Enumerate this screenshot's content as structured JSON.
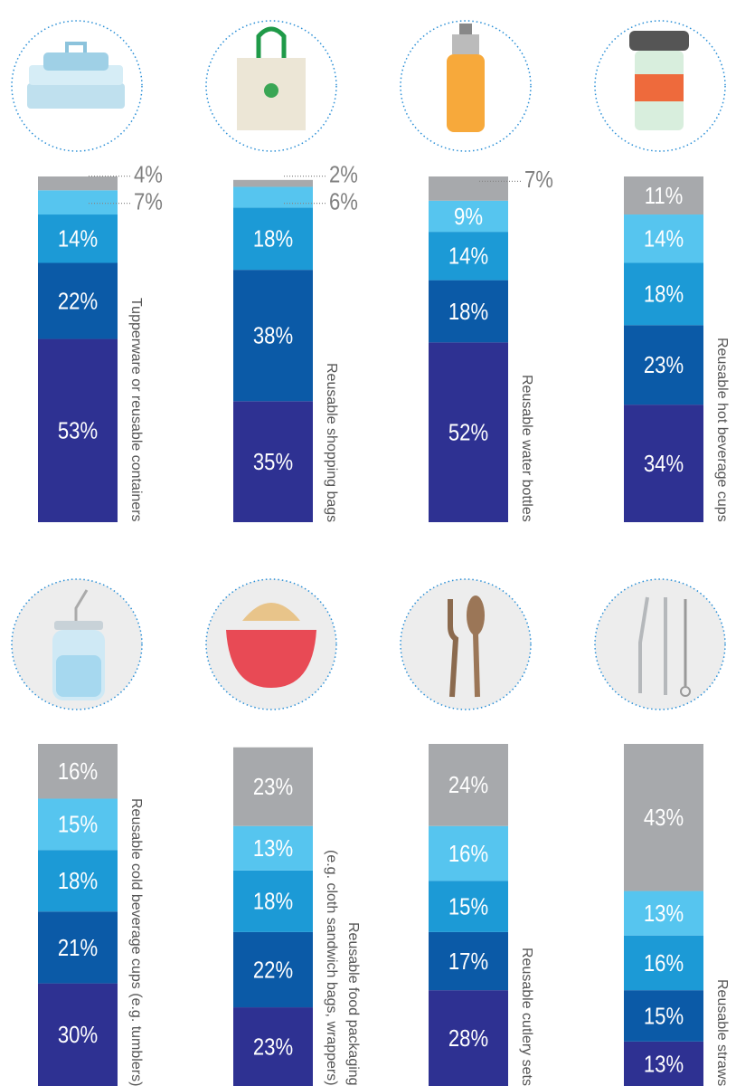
{
  "chart_data": {
    "type": "stacked_bar",
    "categories": [
      "Tupperware or reusable containers",
      "Reusable shopping bags",
      "Reusable water bottles",
      "Reusable hot beverage cups",
      "Reusable cold beverage cups (e.g. tumblers)",
      "Reusable food packaging\n(e.g. cloth sandwich bags, wrappers)",
      "Reusable cutlery sets",
      "Reusable straws"
    ],
    "ylim": [
      0,
      100
    ],
    "series": [
      {
        "color": "#2e3192",
        "values": [
          53,
          35,
          52,
          34,
          30,
          23,
          28,
          13
        ],
        "value_labels": [
          "53%",
          "35%",
          "52%",
          "34%",
          "30%",
          "23%",
          "28%",
          "13%"
        ]
      },
      {
        "color": "#0b5aa7",
        "values": [
          22,
          38,
          18,
          23,
          21,
          22,
          17,
          15
        ],
        "value_labels": [
          "22%",
          "38%",
          "18%",
          "23%",
          "21%",
          "22%",
          "17%",
          "15%"
        ]
      },
      {
        "color": "#1c9ad6",
        "values": [
          14,
          18,
          14,
          18,
          18,
          18,
          15,
          16
        ],
        "value_labels": [
          "14%",
          "18%",
          "14%",
          "18%",
          "18%",
          "18%",
          "15%",
          "16%"
        ]
      },
      {
        "color": "#56c5ef",
        "values": [
          7,
          6,
          9,
          14,
          15,
          13,
          16,
          13
        ],
        "value_labels": [
          "7%",
          "6%",
          "9%",
          "14%",
          "15%",
          "13%",
          "16%",
          "13%"
        ]
      },
      {
        "color": "#a7a9ac",
        "values": [
          4,
          2,
          7,
          11,
          16,
          23,
          24,
          43
        ],
        "value_labels": [
          "4%",
          "2%",
          "7%",
          "11%",
          "16%",
          "23%",
          "24%",
          "43%"
        ]
      }
    ]
  }
}
